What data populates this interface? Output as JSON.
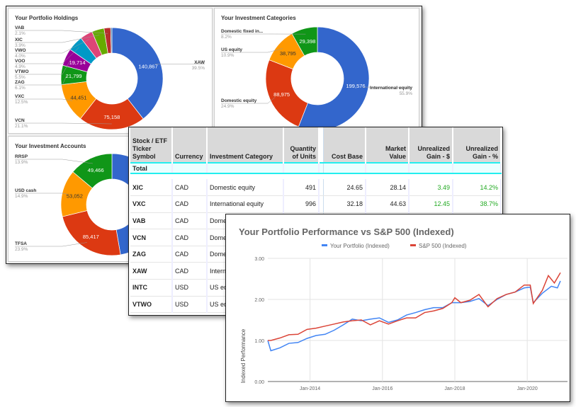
{
  "chart_data": [
    {
      "type": "pie",
      "donut": true,
      "title": "Your Portfolio Holdings",
      "slices": [
        {
          "label": "XAW",
          "pct": "39.5%",
          "share": 39.5,
          "value": "140,867",
          "color": "#3366cc"
        },
        {
          "label": "VCN",
          "pct": "21.1%",
          "share": 21.1,
          "value": "75,158",
          "color": "#dc3912"
        },
        {
          "label": "VXC",
          "pct": "12.5%",
          "share": 12.5,
          "value": "44,451",
          "color": "#ff9900"
        },
        {
          "label": "ZAG",
          "pct": "6.1%",
          "share": 6.1,
          "value": "21,799",
          "color": "#109618"
        },
        {
          "label": "VTWO",
          "pct": "5.5%",
          "share": 5.5,
          "value": "19,714",
          "color": "#990099"
        },
        {
          "label": "VOO",
          "pct": "4.9%",
          "share": 4.9,
          "value": "",
          "color": "#0099c6"
        },
        {
          "label": "VWO",
          "pct": "4.0%",
          "share": 4.0,
          "value": "",
          "color": "#dd4477"
        },
        {
          "label": "XIC",
          "pct": "3.9%",
          "share": 3.9,
          "value": "",
          "color": "#66aa00"
        },
        {
          "label": "VAB",
          "pct": "2.1%",
          "share": 2.1,
          "value": "",
          "color": "#b82e2e"
        },
        {
          "label": "",
          "pct": "",
          "share": 0.4,
          "value": "",
          "color": "#316395"
        }
      ]
    },
    {
      "type": "pie",
      "donut": true,
      "title": "Your Investment Categories",
      "slices": [
        {
          "label": "International equity",
          "pct": "55.9%",
          "share": 55.9,
          "value": "199,576",
          "color": "#3366cc"
        },
        {
          "label": "Domestic equity",
          "pct": "24.9%",
          "share": 24.9,
          "value": "88,975",
          "color": "#dc3912"
        },
        {
          "label": "US equity",
          "pct": "10.9%",
          "share": 10.9,
          "value": "38,795",
          "color": "#ff9900"
        },
        {
          "label": "Domestic fixed in...",
          "pct": "8.2%",
          "share": 8.2,
          "value": "29,398",
          "color": "#109618"
        }
      ]
    },
    {
      "type": "pie",
      "donut": true,
      "title": "Your Investment Accounts",
      "slices": [
        {
          "label": "",
          "pct": "",
          "share": 47.3,
          "value": "",
          "color": "#3366cc"
        },
        {
          "label": "TFSA",
          "pct": "23.9%",
          "share": 23.9,
          "value": "85,417",
          "color": "#dc3912"
        },
        {
          "label": "USD cash",
          "pct": "14.9%",
          "share": 14.9,
          "value": "53,052",
          "color": "#ff9900"
        },
        {
          "label": "RRSP",
          "pct": "13.9%",
          "share": 13.9,
          "value": "49,466",
          "color": "#109618"
        }
      ]
    },
    {
      "type": "line",
      "title": "Your Portfolio Performance vs S&P 500 (Indexed)",
      "xlabel": "",
      "ylabel": "Indexed Performance",
      "ylim": [
        0,
        3
      ],
      "yticks": [
        "0.00",
        "1.00",
        "2.00",
        "3.00"
      ],
      "xticks": [
        "Jan-2014",
        "Jan-2016",
        "Jan-2018",
        "Jan-2020"
      ],
      "grid": true,
      "legend": "top",
      "series": [
        {
          "name": "Your Portfolio (Indexed)",
          "color": "#4285f4",
          "points": [
            [
              "2012-11",
              1.0
            ],
            [
              "2012-12",
              0.75
            ],
            [
              "2013-03",
              0.82
            ],
            [
              "2013-06",
              0.93
            ],
            [
              "2013-09",
              0.95
            ],
            [
              "2013-12",
              1.05
            ],
            [
              "2014-03",
              1.12
            ],
            [
              "2014-06",
              1.15
            ],
            [
              "2014-09",
              1.25
            ],
            [
              "2014-12",
              1.38
            ],
            [
              "2015-03",
              1.52
            ],
            [
              "2015-06",
              1.48
            ],
            [
              "2015-09",
              1.52
            ],
            [
              "2015-12",
              1.55
            ],
            [
              "2016-03",
              1.44
            ],
            [
              "2016-06",
              1.5
            ],
            [
              "2016-09",
              1.62
            ],
            [
              "2016-12",
              1.68
            ],
            [
              "2017-03",
              1.75
            ],
            [
              "2017-06",
              1.8
            ],
            [
              "2017-09",
              1.8
            ],
            [
              "2017-12",
              1.92
            ],
            [
              "2018-03",
              1.92
            ],
            [
              "2018-06",
              1.95
            ],
            [
              "2018-09",
              2.02
            ],
            [
              "2018-12",
              1.85
            ],
            [
              "2019-03",
              2.0
            ],
            [
              "2019-06",
              2.12
            ],
            [
              "2019-09",
              2.18
            ],
            [
              "2019-12",
              2.28
            ],
            [
              "2020-02",
              2.3
            ],
            [
              "2020-03",
              1.92
            ],
            [
              "2020-06",
              2.15
            ],
            [
              "2020-09",
              2.32
            ],
            [
              "2020-11",
              2.28
            ],
            [
              "2020-12",
              2.45
            ]
          ]
        },
        {
          "name": "S&P 500 (Indexed)",
          "color": "#db4437",
          "points": [
            [
              "2012-11",
              1.0
            ],
            [
              "2012-12",
              1.0
            ],
            [
              "2013-03",
              1.06
            ],
            [
              "2013-06",
              1.14
            ],
            [
              "2013-09",
              1.15
            ],
            [
              "2013-12",
              1.27
            ],
            [
              "2014-03",
              1.3
            ],
            [
              "2014-06",
              1.35
            ],
            [
              "2014-09",
              1.4
            ],
            [
              "2014-12",
              1.45
            ],
            [
              "2015-03",
              1.48
            ],
            [
              "2015-06",
              1.5
            ],
            [
              "2015-09",
              1.38
            ],
            [
              "2015-12",
              1.48
            ],
            [
              "2016-03",
              1.4
            ],
            [
              "2016-06",
              1.48
            ],
            [
              "2016-09",
              1.55
            ],
            [
              "2016-12",
              1.55
            ],
            [
              "2017-03",
              1.68
            ],
            [
              "2017-06",
              1.72
            ],
            [
              "2017-09",
              1.78
            ],
            [
              "2017-12",
              1.92
            ],
            [
              "2018-01",
              2.04
            ],
            [
              "2018-03",
              1.92
            ],
            [
              "2018-06",
              1.98
            ],
            [
              "2018-09",
              2.12
            ],
            [
              "2018-12",
              1.82
            ],
            [
              "2019-03",
              2.02
            ],
            [
              "2019-06",
              2.12
            ],
            [
              "2019-09",
              2.18
            ],
            [
              "2019-12",
              2.35
            ],
            [
              "2020-02",
              2.35
            ],
            [
              "2020-03",
              1.9
            ],
            [
              "2020-06",
              2.22
            ],
            [
              "2020-08",
              2.58
            ],
            [
              "2020-10",
              2.4
            ],
            [
              "2020-12",
              2.65
            ]
          ]
        }
      ]
    }
  ],
  "table": {
    "headers": [
      "Stock / ETF Ticker Symbol",
      "Currency",
      "Investment Category",
      "Quantity of Units",
      "Cost Base",
      "Market Value",
      "Unrealized Gain - $",
      "Unrealized Gain - %"
    ],
    "total_label": "Total",
    "rows": [
      {
        "symbol": "XIC",
        "currency": "CAD",
        "category": "Domestic equity",
        "qty": "491",
        "cost": "24.65",
        "market": "28.14",
        "gain": "3.49",
        "gain_pct": "14.2%"
      },
      {
        "symbol": "VXC",
        "currency": "CAD",
        "category": "International equity",
        "qty": "996",
        "cost": "32.18",
        "market": "44.63",
        "gain": "12.45",
        "gain_pct": "38.7%"
      },
      {
        "symbol": "VAB",
        "currency": "CAD",
        "category": "Dome",
        "qty": "",
        "cost": "",
        "market": "",
        "gain": "",
        "gain_pct": ""
      },
      {
        "symbol": "VCN",
        "currency": "CAD",
        "category": "Dome",
        "qty": "",
        "cost": "",
        "market": "",
        "gain": "",
        "gain_pct": ""
      },
      {
        "symbol": "ZAG",
        "currency": "CAD",
        "category": "Dome",
        "qty": "",
        "cost": "",
        "market": "",
        "gain": "",
        "gain_pct": ""
      },
      {
        "symbol": "XAW",
        "currency": "CAD",
        "category": "Intern",
        "qty": "",
        "cost": "",
        "market": "",
        "gain": "",
        "gain_pct": ""
      },
      {
        "symbol": "INTC",
        "currency": "USD",
        "category": "US eq",
        "qty": "",
        "cost": "",
        "market": "",
        "gain": "",
        "gain_pct": ""
      },
      {
        "symbol": "VTWO",
        "currency": "USD",
        "category": "US eq",
        "qty": "",
        "cost": "",
        "market": "",
        "gain": "",
        "gain_pct": ""
      }
    ]
  }
}
